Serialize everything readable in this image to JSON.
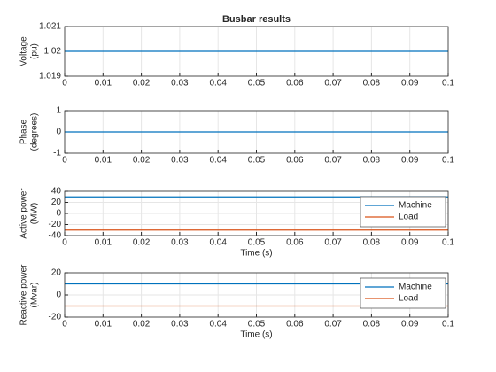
{
  "chart_data": [
    {
      "type": "line",
      "title": "Busbar results",
      "ylabel": [
        "Voltage",
        "(pu)"
      ],
      "x": [
        0,
        0.1
      ],
      "values": [
        1.02,
        1.02
      ],
      "color": "#0072bd",
      "xlim": [
        0,
        0.1
      ],
      "xticks": [
        0,
        0.01,
        0.02,
        0.03,
        0.04,
        0.05,
        0.06,
        0.07,
        0.08,
        0.09,
        0.1
      ],
      "ylim": [
        1.019,
        1.021
      ],
      "yticks": [
        1.019,
        1.02,
        1.021
      ],
      "grid": true
    },
    {
      "type": "line",
      "ylabel": [
        "Phase",
        "(degrees)"
      ],
      "x": [
        0,
        0.1
      ],
      "values": [
        0,
        0
      ],
      "color": "#0072bd",
      "xlim": [
        0,
        0.1
      ],
      "xticks": [
        0,
        0.01,
        0.02,
        0.03,
        0.04,
        0.05,
        0.06,
        0.07,
        0.08,
        0.09,
        0.1
      ],
      "ylim": [
        -1,
        1
      ],
      "yticks": [
        -1,
        0,
        1
      ],
      "grid": true
    },
    {
      "type": "line",
      "ylabel": [
        "Active power",
        "(MW)"
      ],
      "xlabel": "Time (s)",
      "x": [
        0,
        0.1
      ],
      "series": [
        {
          "name": "Machine",
          "color": "#0072bd",
          "values": [
            30,
            30
          ]
        },
        {
          "name": "Load",
          "color": "#d95319",
          "values": [
            -30,
            -30
          ]
        }
      ],
      "xlim": [
        0,
        0.1
      ],
      "xticks": [
        0,
        0.01,
        0.02,
        0.03,
        0.04,
        0.05,
        0.06,
        0.07,
        0.08,
        0.09,
        0.1
      ],
      "ylim": [
        -40,
        40
      ],
      "yticks": [
        -40,
        -20,
        0,
        20,
        40
      ],
      "grid": true,
      "legend": "northeast"
    },
    {
      "type": "line",
      "ylabel": [
        "Reactive power",
        "(Mvar)"
      ],
      "xlabel": "Time (s)",
      "x": [
        0,
        0.1
      ],
      "series": [
        {
          "name": "Machine",
          "color": "#0072bd",
          "values": [
            10,
            10
          ]
        },
        {
          "name": "Load",
          "color": "#d95319",
          "values": [
            -10,
            -10
          ]
        }
      ],
      "xlim": [
        0,
        0.1
      ],
      "xticks": [
        0,
        0.01,
        0.02,
        0.03,
        0.04,
        0.05,
        0.06,
        0.07,
        0.08,
        0.09,
        0.1
      ],
      "ylim": [
        -20,
        20
      ],
      "yticks": [
        -20,
        0,
        20
      ],
      "grid": true,
      "legend": "northeast"
    }
  ]
}
